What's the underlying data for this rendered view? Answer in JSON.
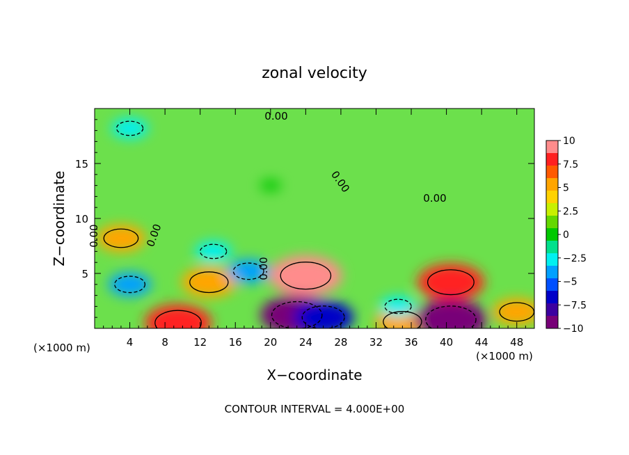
{
  "chart_data": {
    "type": "heatmap",
    "title": "zonal velocity",
    "xlabel": "X−coordinate",
    "ylabel": "Z−coordinate",
    "x_unit_left": "(×1000 m)",
    "x_unit_right": "(×1000 m)",
    "xlim": [
      0,
      50
    ],
    "ylim": [
      0,
      20
    ],
    "xticks": [
      4,
      8,
      12,
      16,
      20,
      24,
      28,
      32,
      36,
      40,
      44,
      48
    ],
    "yticks": [
      5,
      10,
      15
    ],
    "footer": "CONTOUR INTERVAL = 4.000E+00",
    "contour_labels": [
      "0.00",
      "0.00",
      "0.00",
      "0.00",
      "0.00",
      "0.00"
    ],
    "colorbar": {
      "ticks": [
        10,
        7.5,
        5,
        2.5,
        0,
        -2.5,
        -5,
        -7.5,
        -10
      ],
      "tick_labels": [
        "10",
        "7.5",
        "5",
        "2.5",
        "0",
        "−2.5",
        "−5",
        "−7.5",
        "−10"
      ],
      "colors": [
        "#ff8c8c",
        "#ff2020",
        "#ff5a00",
        "#ffa500",
        "#ffd200",
        "#c8f000",
        "#64d800",
        "#00c800",
        "#00e08c",
        "#00f0f0",
        "#00a0ff",
        "#0050ff",
        "#0000c8",
        "#3c00a0",
        "#780078"
      ]
    },
    "features": [
      {
        "x": 24,
        "z": 4.8,
        "value": 9
      },
      {
        "x": 9.5,
        "z": 0.5,
        "value": 8
      },
      {
        "x": 40.5,
        "z": 4.2,
        "value": 8
      },
      {
        "x": 13,
        "z": 4.2,
        "value": 6
      },
      {
        "x": 3,
        "z": 8.2,
        "value": 5
      },
      {
        "x": 35,
        "z": 0.6,
        "value": 6
      },
      {
        "x": 48,
        "z": 1.5,
        "value": 5
      },
      {
        "x": 23,
        "z": 1.2,
        "value": -9
      },
      {
        "x": 40.5,
        "z": 0.8,
        "value": -9
      },
      {
        "x": 26,
        "z": 1.0,
        "value": -7
      },
      {
        "x": 17.5,
        "z": 5.2,
        "value": -4
      },
      {
        "x": 4,
        "z": 4.0,
        "value": -4
      },
      {
        "x": 4,
        "z": 18.2,
        "value": -3
      },
      {
        "x": 13.5,
        "z": 7.0,
        "value": -3
      },
      {
        "x": 34.5,
        "z": 2.0,
        "value": -3
      },
      {
        "x": 20,
        "z": 13,
        "value": 0.4
      }
    ]
  }
}
